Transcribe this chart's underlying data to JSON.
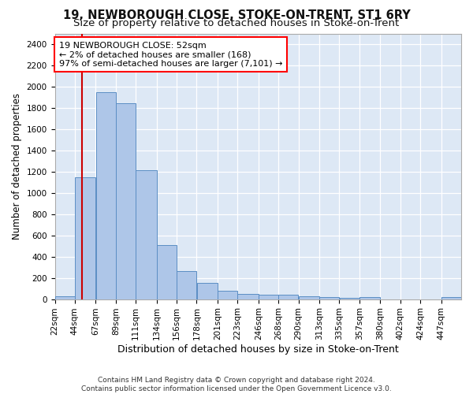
{
  "title1": "19, NEWBOROUGH CLOSE, STOKE-ON-TRENT, ST1 6RY",
  "title2": "Size of property relative to detached houses in Stoke-on-Trent",
  "xlabel": "Distribution of detached houses by size in Stoke-on-Trent",
  "ylabel": "Number of detached properties",
  "footer1": "Contains HM Land Registry data © Crown copyright and database right 2024.",
  "footer2": "Contains public sector information licensed under the Open Government Licence v3.0.",
  "annotation_line1": "19 NEWBOROUGH CLOSE: 52sqm",
  "annotation_line2": "← 2% of detached houses are smaller (168)",
  "annotation_line3": "97% of semi-detached houses are larger (7,101) →",
  "bar_color": "#aec6e8",
  "bar_edge_color": "#5b8ec4",
  "redline_color": "#cc0000",
  "redline_x": 52,
  "bin_edges": [
    22,
    44,
    67,
    89,
    111,
    134,
    156,
    178,
    201,
    223,
    246,
    268,
    290,
    313,
    335,
    357,
    380,
    402,
    424,
    447,
    469
  ],
  "bar_heights": [
    30,
    1150,
    1950,
    1840,
    1210,
    510,
    265,
    155,
    80,
    50,
    45,
    40,
    25,
    20,
    15,
    20,
    0,
    0,
    0,
    20
  ],
  "ylim": [
    0,
    2500
  ],
  "yticks": [
    0,
    200,
    400,
    600,
    800,
    1000,
    1200,
    1400,
    1600,
    1800,
    2000,
    2200,
    2400
  ],
  "background_color": "#dde8f5",
  "grid_color": "#ffffff",
  "fig_bg": "#ffffff",
  "title1_fontsize": 10.5,
  "title2_fontsize": 9.5,
  "xlabel_fontsize": 9,
  "ylabel_fontsize": 8.5,
  "annotation_fontsize": 8,
  "tick_fontsize": 7.5
}
